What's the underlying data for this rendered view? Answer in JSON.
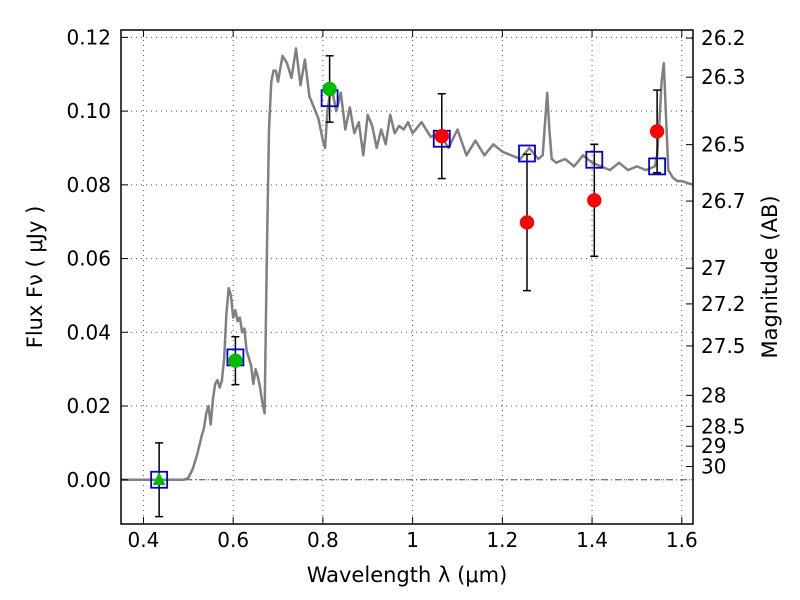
{
  "chart_data": {
    "type": "scatter",
    "xlabel": "Wavelength  λ (μm)",
    "ylabel": "Flux  Fν  ( μJy )",
    "y2label": "Magnitude (AB)",
    "xlim": [
      0.35,
      1.625
    ],
    "ylim": [
      -0.012,
      0.122
    ],
    "grid": true,
    "x_ticks": [
      "0.4",
      "0.6",
      "0.8",
      "1",
      "1.2",
      "1.4",
      "1.6"
    ],
    "x_tick_values": [
      0.4,
      0.6,
      0.8,
      1.0,
      1.2,
      1.4,
      1.6
    ],
    "y_ticks": [
      "0.00",
      "0.02",
      "0.04",
      "0.06",
      "0.08",
      "0.10",
      "0.12"
    ],
    "y_tick_values": [
      0.0,
      0.02,
      0.04,
      0.06,
      0.08,
      0.1,
      0.12
    ],
    "mag_ticks": [
      {
        "label": "26.2",
        "flux": 0.1198
      },
      {
        "label": "26.3",
        "flux": 0.1092
      },
      {
        "label": "26.5",
        "flux": 0.0909
      },
      {
        "label": "26.7",
        "flux": 0.0756
      },
      {
        "label": "27",
        "flux": 0.0574
      },
      {
        "label": "27.2",
        "flux": 0.0477
      },
      {
        "label": "27.5",
        "flux": 0.0363
      },
      {
        "label": "28",
        "flux": 0.0229
      },
      {
        "label": "28.5",
        "flux": 0.0145
      },
      {
        "label": "29",
        "flux": 0.0091
      },
      {
        "label": "30",
        "flux": 0.0036
      }
    ],
    "colors": {
      "sed": "#808080",
      "model": "#0000cc",
      "observed": "#ff0000",
      "observed_alt": "#00bb00",
      "errorbar": "#000000"
    },
    "sed": {
      "x": [
        0.35,
        0.4,
        0.45,
        0.49,
        0.5,
        0.51,
        0.52,
        0.53,
        0.535,
        0.54,
        0.545,
        0.55,
        0.555,
        0.56,
        0.565,
        0.57,
        0.575,
        0.58,
        0.585,
        0.59,
        0.595,
        0.6,
        0.605,
        0.61,
        0.615,
        0.62,
        0.625,
        0.63,
        0.635,
        0.64,
        0.645,
        0.65,
        0.655,
        0.66,
        0.665,
        0.67,
        0.675,
        0.68,
        0.685,
        0.69,
        0.695,
        0.7,
        0.71,
        0.72,
        0.73,
        0.74,
        0.75,
        0.76,
        0.77,
        0.78,
        0.79,
        0.8,
        0.805,
        0.81,
        0.815,
        0.82,
        0.83,
        0.84,
        0.85,
        0.86,
        0.87,
        0.88,
        0.89,
        0.9,
        0.91,
        0.92,
        0.93,
        0.94,
        0.95,
        0.96,
        0.97,
        0.98,
        0.99,
        1.0,
        1.02,
        1.04,
        1.06,
        1.08,
        1.1,
        1.12,
        1.14,
        1.16,
        1.18,
        1.2,
        1.22,
        1.24,
        1.26,
        1.28,
        1.29,
        1.3,
        1.305,
        1.31,
        1.32,
        1.34,
        1.36,
        1.38,
        1.4,
        1.42,
        1.44,
        1.46,
        1.48,
        1.5,
        1.52,
        1.54,
        1.545,
        1.55,
        1.555,
        1.56,
        1.565,
        1.57,
        1.58,
        1.59,
        1.6,
        1.625
      ],
      "y": [
        0.0,
        0.0,
        0.0,
        0.0,
        0.0005,
        0.003,
        0.007,
        0.012,
        0.014,
        0.018,
        0.02,
        0.015,
        0.022,
        0.026,
        0.027,
        0.025,
        0.027,
        0.033,
        0.045,
        0.052,
        0.05,
        0.044,
        0.046,
        0.043,
        0.044,
        0.04,
        0.041,
        0.035,
        0.033,
        0.031,
        0.026,
        0.03,
        0.028,
        0.025,
        0.021,
        0.018,
        0.06,
        0.095,
        0.108,
        0.111,
        0.111,
        0.108,
        0.115,
        0.113,
        0.109,
        0.117,
        0.107,
        0.114,
        0.104,
        0.101,
        0.098,
        0.092,
        0.09,
        0.1,
        0.104,
        0.106,
        0.1,
        0.105,
        0.095,
        0.101,
        0.094,
        0.097,
        0.088,
        0.099,
        0.096,
        0.09,
        0.095,
        0.091,
        0.099,
        0.094,
        0.096,
        0.095,
        0.097,
        0.094,
        0.097,
        0.093,
        0.094,
        0.09,
        0.095,
        0.088,
        0.092,
        0.088,
        0.091,
        0.089,
        0.088,
        0.087,
        0.09,
        0.087,
        0.088,
        0.105,
        0.095,
        0.087,
        0.086,
        0.087,
        0.085,
        0.088,
        0.086,
        0.085,
        0.084,
        0.086,
        0.084,
        0.085,
        0.084,
        0.085,
        0.088,
        0.097,
        0.108,
        0.113,
        0.098,
        0.084,
        0.082,
        0.081,
        0.081,
        0.08
      ]
    },
    "model_points": {
      "x": [
        0.435,
        0.605,
        0.815,
        1.065,
        1.255,
        1.405,
        1.545
      ],
      "y": [
        0.0,
        0.0332,
        0.1035,
        0.0925,
        0.0885,
        0.0868,
        0.085
      ]
    },
    "observed_points": [
      {
        "x": 0.435,
        "y": 0.0,
        "err": 0.01,
        "marker": "triangle",
        "color": "green"
      },
      {
        "x": 0.605,
        "y": 0.0323,
        "err": 0.0065,
        "marker": "circle",
        "color": "green"
      },
      {
        "x": 0.815,
        "y": 0.106,
        "err": 0.009,
        "marker": "circle",
        "color": "green"
      },
      {
        "x": 1.065,
        "y": 0.0932,
        "err": 0.0115,
        "marker": "circle",
        "color": "red"
      },
      {
        "x": 1.255,
        "y": 0.0698,
        "err": 0.0185,
        "marker": "circle",
        "color": "red"
      },
      {
        "x": 1.405,
        "y": 0.0758,
        "err": 0.0152,
        "marker": "circle",
        "color": "red"
      },
      {
        "x": 1.545,
        "y": 0.0945,
        "err": 0.0112,
        "marker": "circle",
        "color": "red"
      }
    ]
  }
}
